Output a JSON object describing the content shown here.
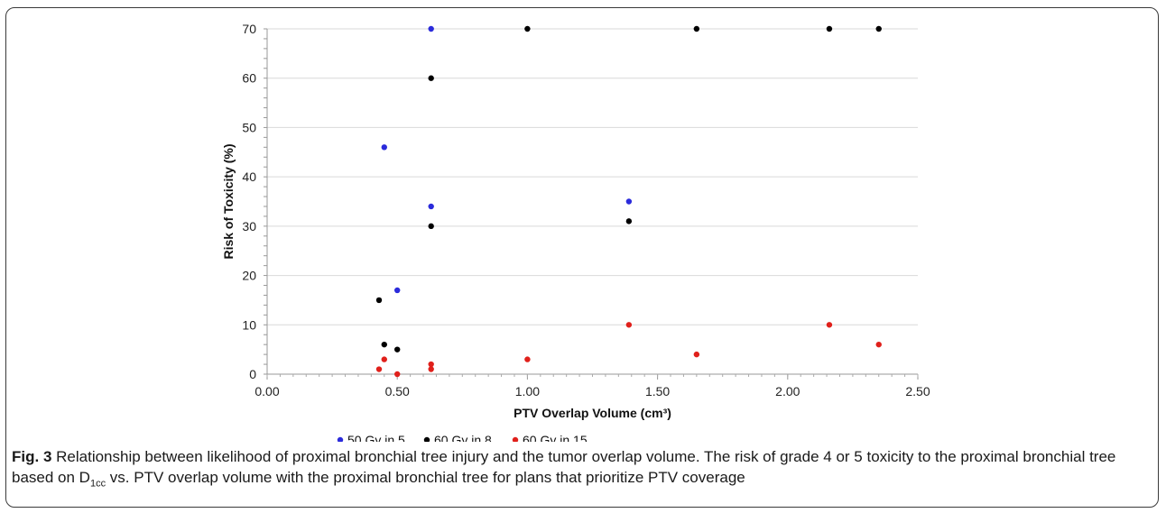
{
  "chart_data": {
    "type": "scatter",
    "xlabel": "PTV Overlap Volume (cm³)",
    "ylabel": "Risk of Toxicity (%)",
    "xlim": [
      0,
      2.5
    ],
    "ylim": [
      0,
      70
    ],
    "xticks": [
      "0.00",
      "0.50",
      "1.00",
      "1.50",
      "2.00",
      "2.50"
    ],
    "yticks": [
      "0",
      "10",
      "20",
      "30",
      "40",
      "50",
      "60",
      "70"
    ],
    "grid": "horizontal",
    "legend_position": "bottom",
    "series": [
      {
        "name": "50 Gy in 5",
        "color": "#2b2bdb",
        "points": [
          [
            0.45,
            46
          ],
          [
            0.5,
            17
          ],
          [
            0.63,
            34
          ],
          [
            0.63,
            70
          ],
          [
            1.39,
            35
          ]
        ]
      },
      {
        "name": "60 Gy in 8",
        "color": "#000000",
        "points": [
          [
            0.43,
            15
          ],
          [
            0.45,
            6
          ],
          [
            0.5,
            5
          ],
          [
            0.63,
            30
          ],
          [
            0.63,
            60
          ],
          [
            1.0,
            70
          ],
          [
            1.39,
            31
          ],
          [
            1.65,
            70
          ],
          [
            2.16,
            70
          ],
          [
            2.35,
            70
          ]
        ]
      },
      {
        "name": "60 Gy in 15",
        "color": "#e0201b",
        "points": [
          [
            0.43,
            1
          ],
          [
            0.45,
            3
          ],
          [
            0.5,
            0
          ],
          [
            0.63,
            2
          ],
          [
            0.63,
            1
          ],
          [
            1.0,
            3
          ],
          [
            1.39,
            10
          ],
          [
            1.65,
            4
          ],
          [
            2.16,
            10
          ],
          [
            2.35,
            6
          ]
        ]
      }
    ]
  },
  "caption": {
    "label": "Fig. 3",
    "text_part1": " Relationship between likelihood of proximal bronchial tree injury and the tumor overlap volume. The risk of grade 4 or 5 toxicity to the proximal bronchial tree based on D",
    "subscript": "1cc",
    "text_part2": " vs. PTV overlap volume with the proximal bronchial tree for plans that prioritize PTV coverage"
  }
}
